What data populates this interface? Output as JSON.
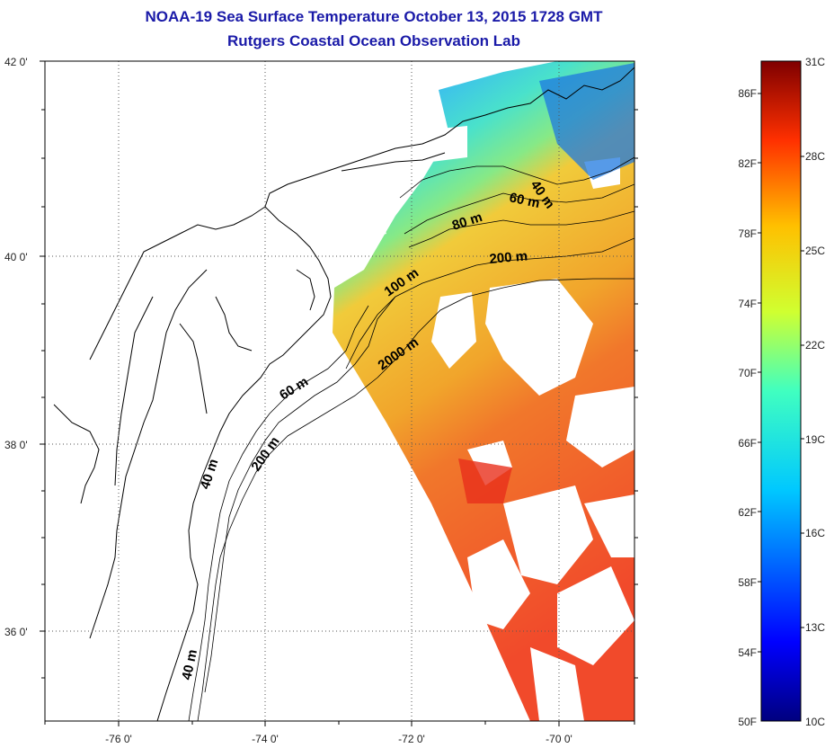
{
  "title": "NOAA-19 Sea Surface Temperature October 13, 2015 1728 GMT",
  "subtitle": "Rutgers Coastal Ocean Observation Lab",
  "map": {
    "lat_ticks": [
      {
        "lat": 42,
        "label": "42 0'"
      },
      {
        "lat": 40,
        "label": "40 0'"
      },
      {
        "lat": 38,
        "label": "38 0'"
      },
      {
        "lat": 36,
        "label": "36 0'"
      }
    ],
    "lon_ticks": [
      {
        "lon": -76,
        "label": "-76 0'"
      },
      {
        "lon": -74,
        "label": "-74 0'"
      },
      {
        "lon": -72,
        "label": "-72 0'"
      },
      {
        "lon": -70,
        "label": "-70 0'"
      }
    ],
    "contour_labels": [
      "40 m",
      "60 m",
      "80 m",
      "200 m",
      "100 m",
      "2000 m",
      "60 m",
      "40 m",
      "200 m",
      "40 m"
    ],
    "grid": "dotted"
  },
  "colorbar": {
    "fahrenheit": [
      "86F",
      "82F",
      "78F",
      "74F",
      "70F",
      "66F",
      "62F",
      "58F",
      "54F",
      "50F"
    ],
    "celsius": [
      "31C",
      "28C",
      "25C",
      "22C",
      "19C",
      "16C",
      "13C",
      "10C"
    ],
    "range_c": [
      10,
      31
    ]
  },
  "colors": {
    "title": "#1a1aa8",
    "warm": "#f04020",
    "mid": "#f0b020",
    "cool": "#30d0c0",
    "cold": "#1e78e0"
  }
}
